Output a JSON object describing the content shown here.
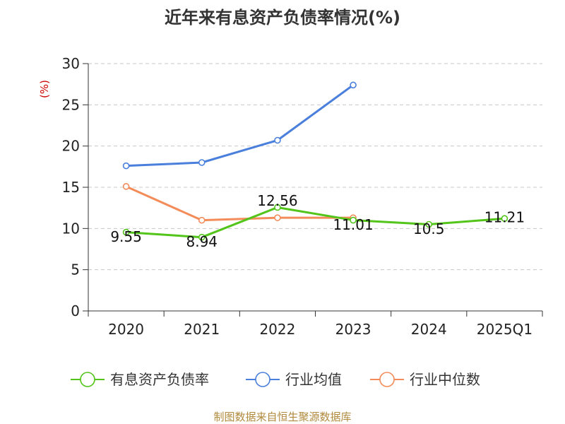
{
  "chart_data": {
    "type": "line",
    "title": "近年来有息资产负债率情况(%)",
    "y_unit": "(%)",
    "categories": [
      "2020",
      "2021",
      "2022",
      "2023",
      "2024",
      "2025Q1"
    ],
    "ylim": [
      0,
      30
    ],
    "yticks": [
      "0",
      "5",
      "10",
      "15",
      "20",
      "25",
      "30"
    ],
    "grid": true,
    "legend_position": "bottom",
    "series": [
      {
        "name": "有息资产负债率",
        "color": "#52c41a",
        "values": [
          9.55,
          8.94,
          12.56,
          11.01,
          10.5,
          11.21
        ],
        "labels": [
          "9.55",
          "8.94",
          "12.56",
          "11.01",
          "10.5",
          "11.21"
        ]
      },
      {
        "name": "行业均值",
        "color": "#4a7fdc",
        "values": [
          17.6,
          18.0,
          20.7,
          27.4,
          null,
          null
        ]
      },
      {
        "name": "行业中位数",
        "color": "#f48c5a",
        "values": [
          15.1,
          11.0,
          11.3,
          11.3,
          null,
          null
        ]
      }
    ]
  },
  "source": "制图数据来自恒生聚源数据库"
}
